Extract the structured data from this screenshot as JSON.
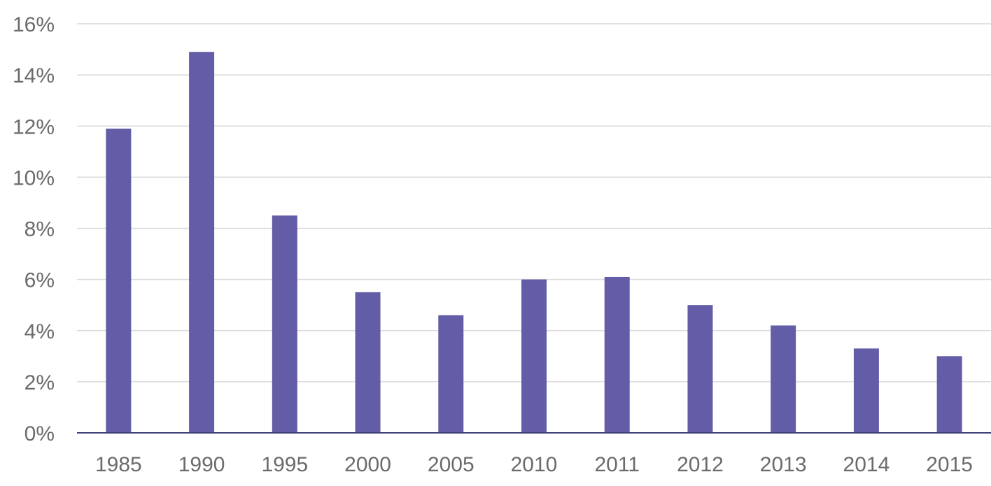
{
  "chart_data": {
    "type": "bar",
    "title": "",
    "xlabel": "",
    "ylabel": "",
    "categories": [
      "1985",
      "1990",
      "1995",
      "2000",
      "2005",
      "2010",
      "2011",
      "2012",
      "2013",
      "2014",
      "2015"
    ],
    "values": [
      11.9,
      14.9,
      8.5,
      5.5,
      4.6,
      6.0,
      6.1,
      5.0,
      4.2,
      3.3,
      3.0
    ],
    "ylim": [
      0,
      16
    ],
    "yticks": [
      0,
      2,
      4,
      6,
      8,
      10,
      12,
      14,
      16
    ],
    "ytick_labels": [
      "0%",
      "2%",
      "4%",
      "6%",
      "8%",
      "10%",
      "12%",
      "14%",
      "16%"
    ],
    "grid": true,
    "legend": "none",
    "bar_color": "#635ca6",
    "grid_color": "#d9d9d9",
    "axis_color": "#3f3f7a"
  }
}
